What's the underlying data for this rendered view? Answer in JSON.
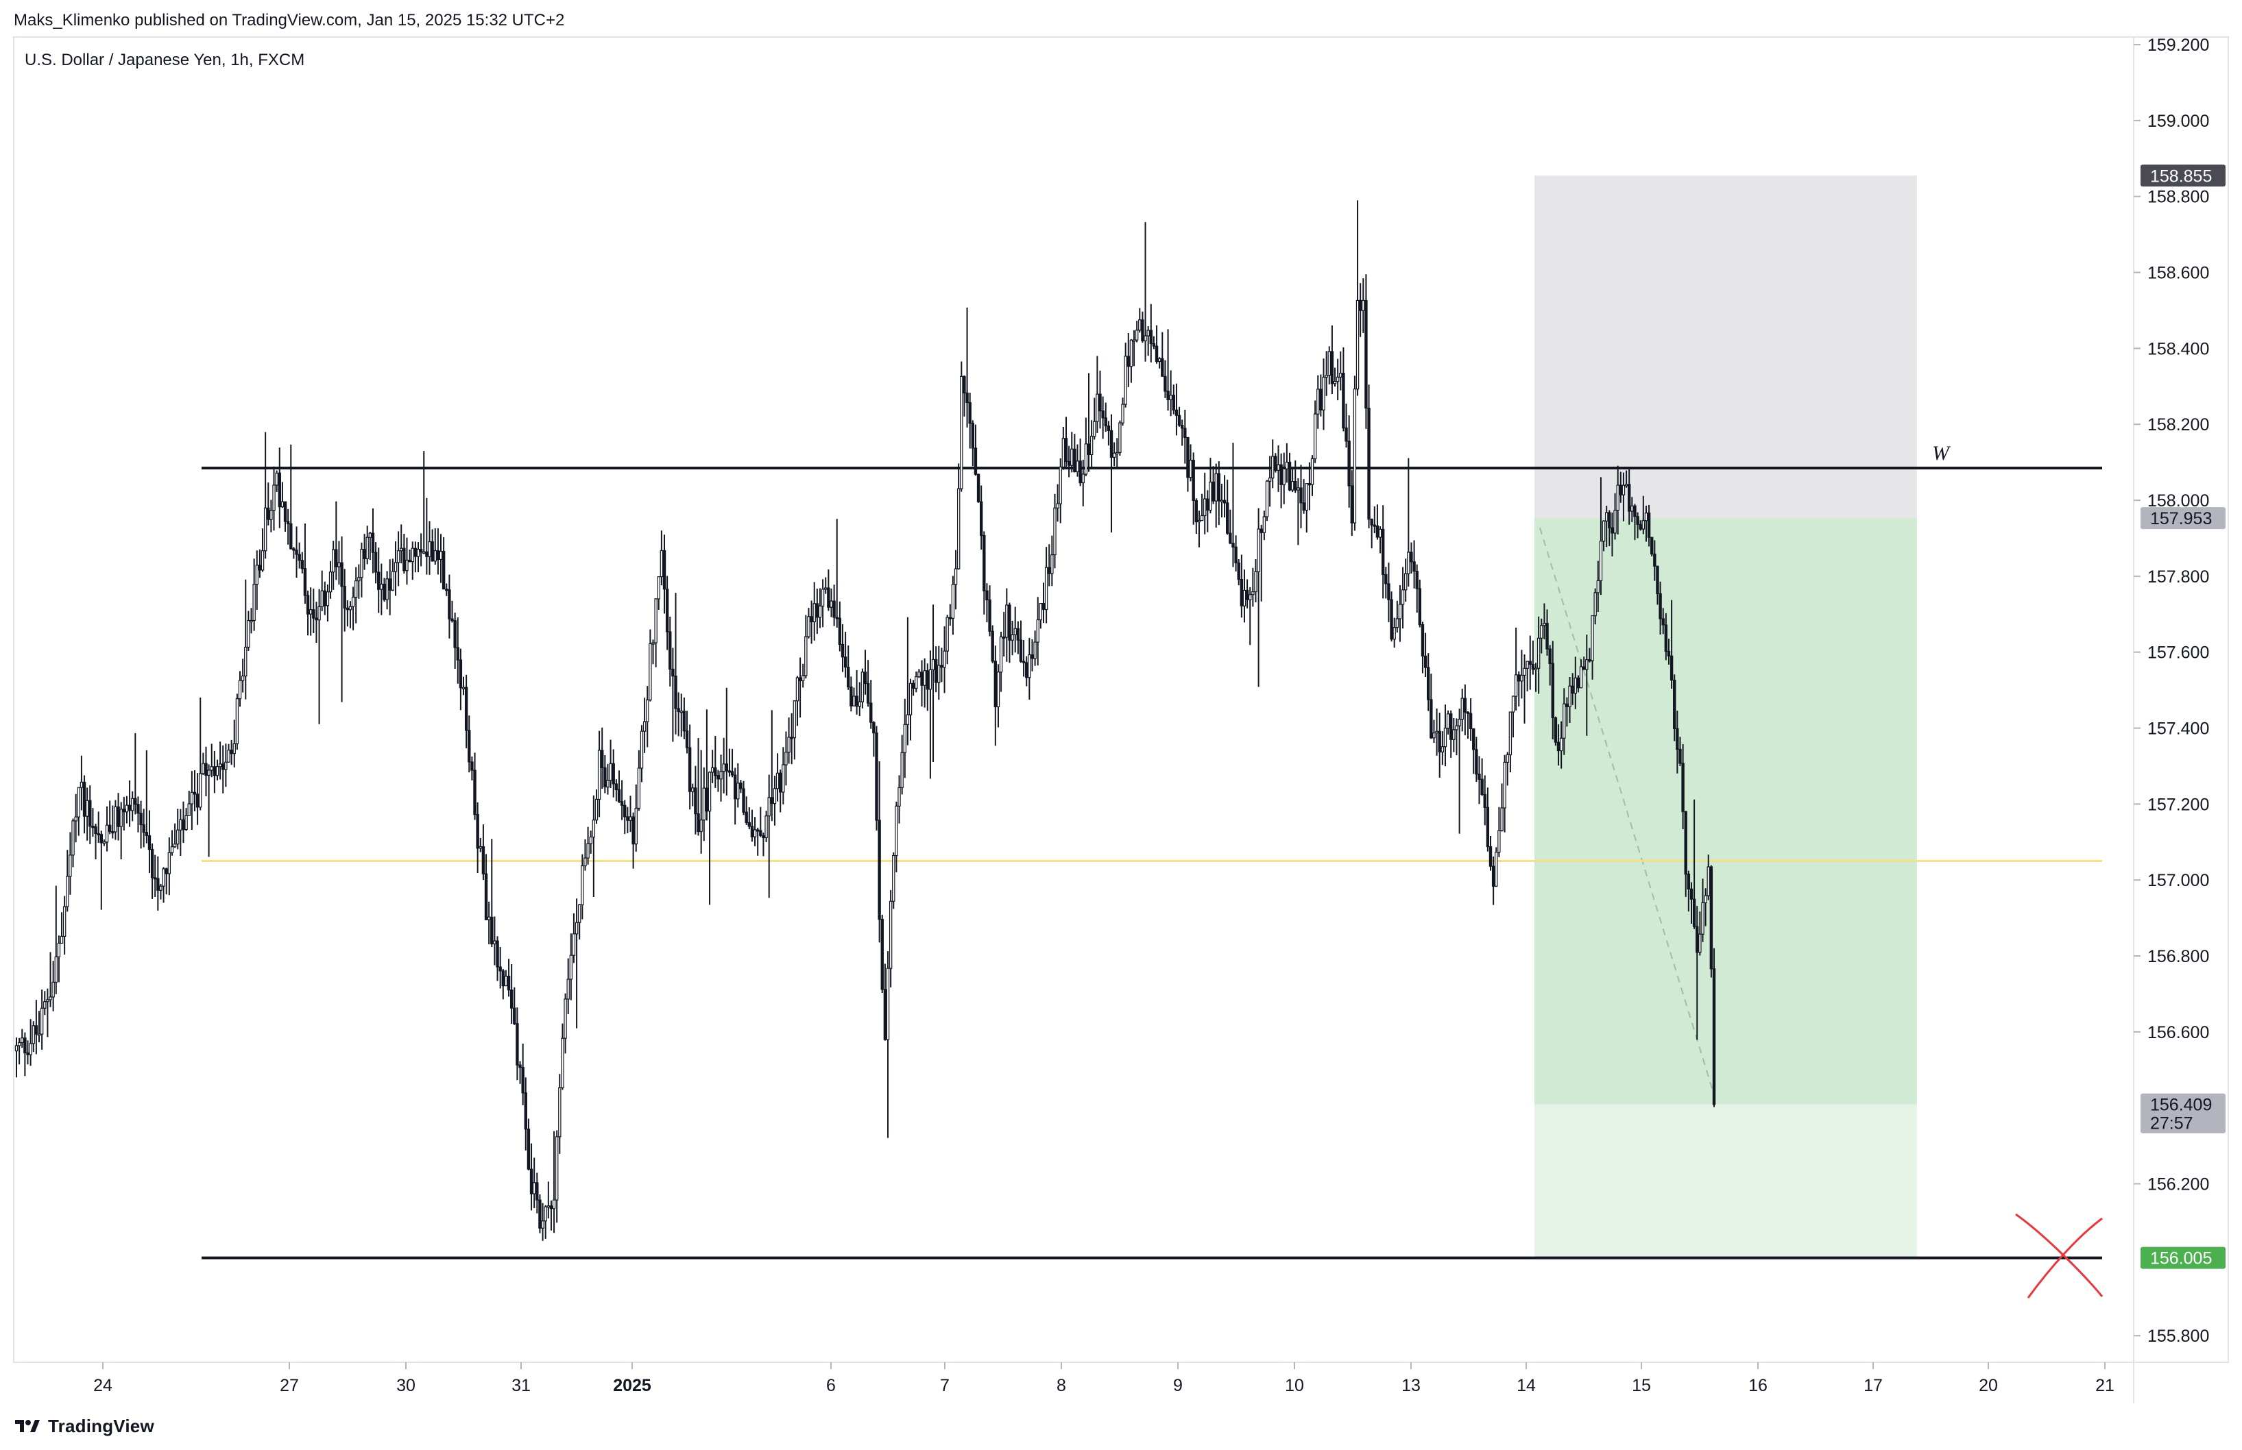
{
  "header": {
    "published": "Maks_Klimenko published on TradingView.com, Jan 15, 2025 15:32 UTC+2",
    "symbol": "U.S. Dollar / Japanese Yen, 1h, FXCM"
  },
  "footer": {
    "brand": "TradingView"
  },
  "colors": {
    "candle": "#131722",
    "grid": "#e0e3eb",
    "target_zone": "#d0ead3",
    "target_zone_light": "#e6f3e7",
    "stop_zone": "#e6e6e9",
    "mid_line": "#f5e08a",
    "cross": "#e5393b",
    "tag_dark": "#4a4a55",
    "tag_grey": "#b2b5be",
    "tag_green": "#4caf50"
  },
  "chart_data": {
    "type": "candlestick",
    "ylim": [
      155.73,
      159.22
    ],
    "y_ticks": [
      "159.200",
      "159.000",
      "158.800",
      "158.600",
      "158.400",
      "158.200",
      "158.000",
      "157.800",
      "157.600",
      "157.400",
      "157.200",
      "157.000",
      "156.800",
      "156.600",
      "156.200",
      "155.800"
    ],
    "x_ticks": [
      "24",
      "27",
      "30",
      "31",
      "2025",
      "6",
      "7",
      "8",
      "9",
      "10",
      "13",
      "14",
      "15",
      "16",
      "17",
      "20",
      "21"
    ],
    "price_tags": [
      {
        "label": "158.855",
        "value": 158.855,
        "style": "dark"
      },
      {
        "label": "157.953",
        "value": 157.953,
        "style": "grey"
      },
      {
        "label": "156.409",
        "value": 156.409,
        "style": "grey",
        "sub": "27:57"
      },
      {
        "label": "156.005",
        "value": 156.005,
        "style": "green"
      }
    ],
    "horizontal_lines": [
      {
        "value": 158.085,
        "color": "#131722",
        "label": "W"
      },
      {
        "value": 157.05,
        "color": "#f5e08a"
      },
      {
        "value": 156.005,
        "color": "#131722"
      }
    ],
    "position": {
      "stop": 158.855,
      "entry": 157.953,
      "current": 156.409,
      "target": 156.005
    },
    "waypoints": [
      [
        0,
        156.55
      ],
      [
        8,
        156.6
      ],
      [
        16,
        156.85
      ],
      [
        22,
        157.25
      ],
      [
        30,
        157.1
      ],
      [
        40,
        157.2
      ],
      [
        50,
        157.0
      ],
      [
        60,
        157.15
      ],
      [
        68,
        157.3
      ],
      [
        76,
        157.35
      ],
      [
        84,
        157.75
      ],
      [
        88,
        157.95
      ],
      [
        92,
        158.05
      ],
      [
        96,
        157.95
      ],
      [
        102,
        157.75
      ],
      [
        106,
        157.65
      ],
      [
        112,
        157.85
      ],
      [
        118,
        157.7
      ],
      [
        124,
        157.9
      ],
      [
        130,
        157.75
      ],
      [
        136,
        157.85
      ],
      [
        144,
        157.9
      ],
      [
        150,
        157.85
      ],
      [
        156,
        157.6
      ],
      [
        162,
        157.2
      ],
      [
        166,
        156.9
      ],
      [
        172,
        156.75
      ],
      [
        176,
        156.6
      ],
      [
        182,
        156.2
      ],
      [
        186,
        156.1
      ],
      [
        190,
        156.2
      ],
      [
        194,
        156.7
      ],
      [
        200,
        157.0
      ],
      [
        206,
        157.3
      ],
      [
        212,
        157.25
      ],
      [
        218,
        157.1
      ],
      [
        224,
        157.6
      ],
      [
        228,
        157.85
      ],
      [
        232,
        157.5
      ],
      [
        236,
        157.4
      ],
      [
        240,
        157.15
      ],
      [
        248,
        157.3
      ],
      [
        256,
        157.2
      ],
      [
        262,
        157.1
      ],
      [
        268,
        157.25
      ],
      [
        272,
        157.3
      ],
      [
        276,
        157.5
      ],
      [
        280,
        157.65
      ],
      [
        286,
        157.75
      ],
      [
        290,
        157.7
      ],
      [
        296,
        157.45
      ],
      [
        300,
        157.55
      ],
      [
        303,
        157.4
      ],
      [
        305,
        156.9
      ],
      [
        307,
        156.6
      ],
      [
        311,
        157.2
      ],
      [
        316,
        157.5
      ],
      [
        324,
        157.55
      ],
      [
        328,
        157.6
      ],
      [
        332,
        157.8
      ],
      [
        334,
        158.3
      ],
      [
        338,
        158.15
      ],
      [
        342,
        157.8
      ],
      [
        346,
        157.5
      ],
      [
        350,
        157.7
      ],
      [
        356,
        157.55
      ],
      [
        360,
        157.6
      ],
      [
        366,
        157.9
      ],
      [
        370,
        158.15
      ],
      [
        376,
        158.05
      ],
      [
        382,
        158.25
      ],
      [
        388,
        158.1
      ],
      [
        392,
        158.35
      ],
      [
        396,
        158.45
      ],
      [
        402,
        158.4
      ],
      [
        406,
        158.3
      ],
      [
        410,
        158.2
      ],
      [
        414,
        158.1
      ],
      [
        418,
        157.95
      ],
      [
        424,
        158.05
      ],
      [
        428,
        157.95
      ],
      [
        432,
        157.75
      ],
      [
        436,
        157.75
      ],
      [
        440,
        157.95
      ],
      [
        444,
        158.1
      ],
      [
        450,
        158.05
      ],
      [
        456,
        158.0
      ],
      [
        460,
        158.25
      ],
      [
        464,
        158.35
      ],
      [
        468,
        158.3
      ],
      [
        472,
        157.95
      ],
      [
        474,
        158.55
      ],
      [
        476,
        158.5
      ],
      [
        478,
        157.95
      ],
      [
        482,
        157.9
      ],
      [
        486,
        157.65
      ],
      [
        490,
        157.8
      ],
      [
        494,
        157.85
      ],
      [
        500,
        157.35
      ],
      [
        506,
        157.4
      ],
      [
        512,
        157.45
      ],
      [
        518,
        157.2
      ],
      [
        522,
        157.0
      ],
      [
        526,
        157.3
      ],
      [
        530,
        157.5
      ],
      [
        536,
        157.55
      ],
      [
        540,
        157.7
      ],
      [
        544,
        157.35
      ],
      [
        548,
        157.45
      ],
      [
        552,
        157.55
      ],
      [
        556,
        157.6
      ],
      [
        560,
        157.9
      ],
      [
        564,
        157.95
      ],
      [
        568,
        158.05
      ],
      [
        572,
        157.95
      ],
      [
        576,
        157.95
      ],
      [
        580,
        157.75
      ],
      [
        584,
        157.55
      ],
      [
        588,
        157.3
      ],
      [
        590,
        157.05
      ],
      [
        594,
        156.85
      ],
      [
        596,
        156.95
      ],
      [
        598,
        157.05
      ],
      [
        600,
        156.41
      ]
    ]
  }
}
